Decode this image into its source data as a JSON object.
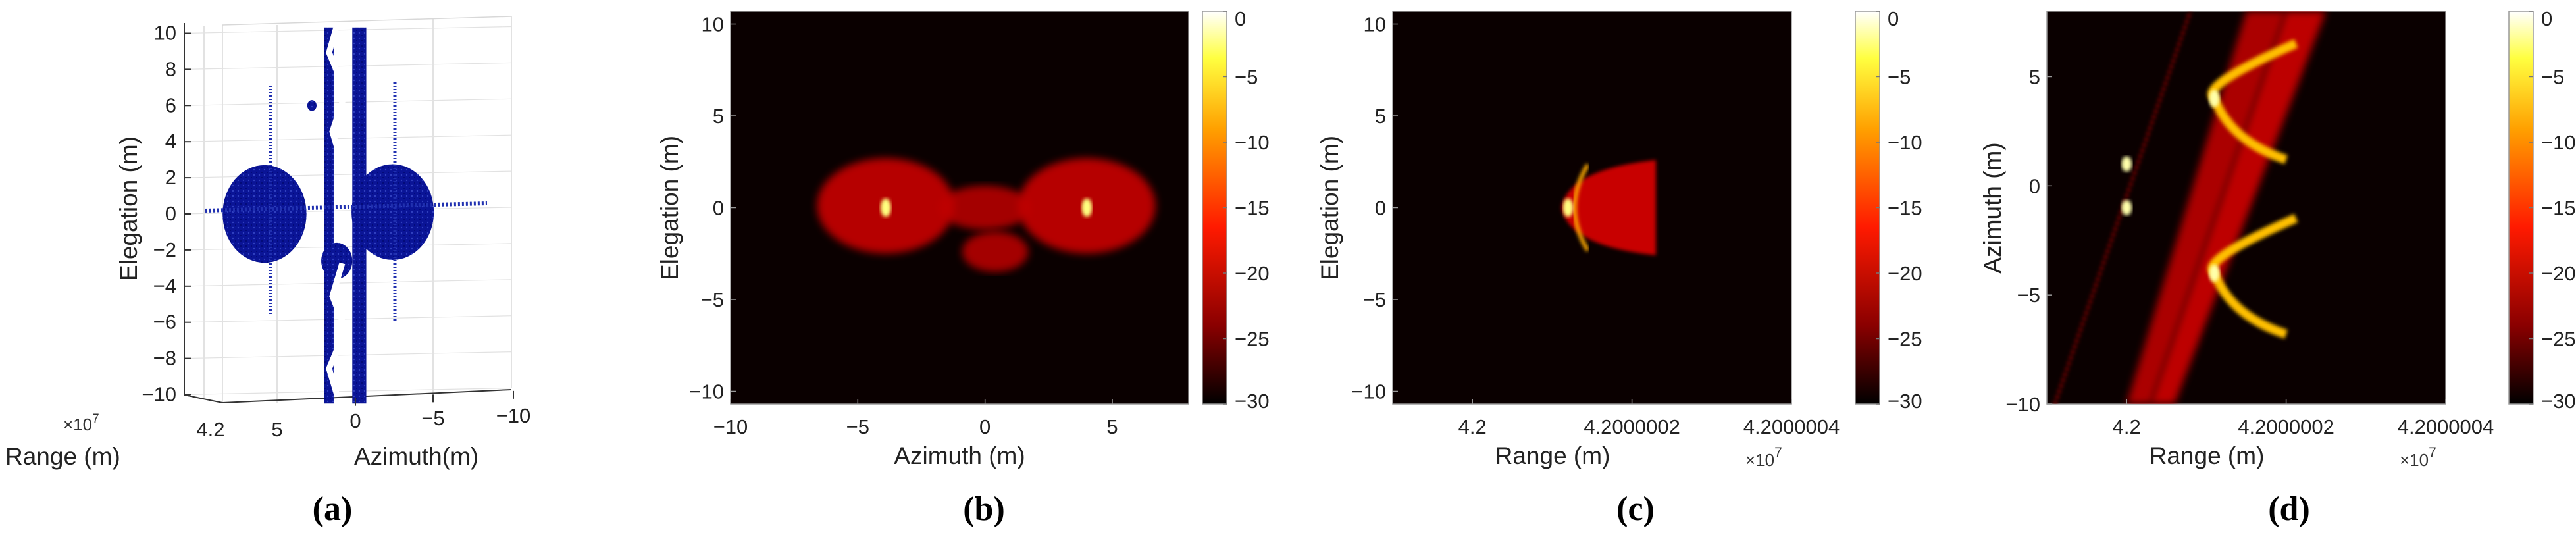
{
  "chart_data": [
    {
      "type": "scatter",
      "panel_label": "(a)",
      "xlabel": "Azimuth(m)",
      "zlabel": "Range (m)",
      "ylabel": "Elegation (m)",
      "range_multiplier": "×10",
      "range_multiplier_exp": "7",
      "yticks": [
        "10",
        "8",
        "6",
        "4",
        "2",
        "0",
        "−2",
        "−4",
        "−6",
        "−8",
        "−10"
      ],
      "ytick_values": [
        10,
        8,
        6,
        4,
        2,
        0,
        -2,
        -4,
        -6,
        -8,
        -10
      ],
      "xticks": [
        "0",
        "−5",
        "−10"
      ],
      "xtick_values": [
        0,
        -5,
        -10
      ],
      "ztick_labels": [
        "4.2",
        "5"
      ],
      "ylim": [
        -10.5,
        10.5
      ],
      "grid": true,
      "color": "#0a1496",
      "features": [
        {
          "kind": "sphere",
          "az": 5.85,
          "el": 0,
          "r": 2.7
        },
        {
          "kind": "sphere",
          "az": -2.4,
          "el": 0.1,
          "r": 2.65
        },
        {
          "kind": "bar",
          "az_from": 2.0,
          "az_to": 1.4,
          "el_from": -10.5,
          "el_to": 10.5
        },
        {
          "kind": "bar",
          "az_from": 0.2,
          "az_to": -0.7,
          "el_from": -10.5,
          "el_to": 10.5
        },
        {
          "kind": "blob",
          "az": 1.2,
          "el": -2.6,
          "r": 1.0
        },
        {
          "kind": "blob",
          "az": 2.8,
          "el": 6.0,
          "r": 0.3
        }
      ]
    },
    {
      "type": "heatmap",
      "panel_label": "(b)",
      "xlabel": "Azimuth (m)",
      "ylabel": "Elegation (m)",
      "xlim": [
        -10,
        8
      ],
      "ylim": [
        -10.7,
        10.7
      ],
      "xticks": [
        "−10",
        "−5",
        "0",
        "5"
      ],
      "xtick_values": [
        -10,
        -5,
        0,
        5
      ],
      "yticks": [
        "10",
        "5",
        "0",
        "−5",
        "−10"
      ],
      "ytick_values": [
        10,
        5,
        0,
        -5,
        -10
      ],
      "colorbar": {
        "ticks": [
          "0",
          "−5",
          "−10",
          "−15",
          "−20",
          "−25",
          "−30"
        ],
        "values": [
          0,
          -5,
          -10,
          -15,
          -20,
          -25,
          -30
        ],
        "range_db": [
          -30,
          0
        ],
        "colormap": "hot"
      },
      "features": [
        {
          "kind": "line",
          "x1": -1.1,
          "y1": -10.7,
          "x2": -1.1,
          "y2": 10.7,
          "db": -24
        },
        {
          "kind": "line",
          "x1": 1.1,
          "y1": -10.7,
          "x2": 1.1,
          "y2": 10.7,
          "db": -24
        },
        {
          "kind": "blob",
          "x": -3.9,
          "y": 0.1,
          "rx": 2.7,
          "ry": 2.6,
          "db": -20
        },
        {
          "kind": "blob",
          "x": 4.0,
          "y": 0.1,
          "rx": 2.7,
          "ry": 2.6,
          "db": -20
        },
        {
          "kind": "blob",
          "x": 0,
          "y": 0,
          "rx": 1.8,
          "ry": 1.2,
          "db": -21
        },
        {
          "kind": "blob",
          "x": 0.4,
          "y": -2.4,
          "rx": 1.3,
          "ry": 1.1,
          "db": -21
        },
        {
          "kind": "line",
          "x1": -8,
          "y1": 0,
          "x2": 7.7,
          "y2": 0,
          "db": -17
        },
        {
          "kind": "spot",
          "x": -3.9,
          "y": 0,
          "r": 0.5,
          "db": -3
        },
        {
          "kind": "spot",
          "x": 4.0,
          "y": 0,
          "r": 0.5,
          "db": -3
        }
      ]
    },
    {
      "type": "heatmap",
      "panel_label": "(c)",
      "xlabel": "Range (m)",
      "ylabel": "Elegation (m)",
      "x_multiplier": "×10",
      "x_multiplier_exp": "7",
      "xlim": [
        4.1999999,
        4.2000004
      ],
      "ylim": [
        -10.7,
        10.7
      ],
      "xticks": [
        "4.2",
        "4.2000002",
        "4.2000004"
      ],
      "xtick_values": [
        4.2,
        4.2000002,
        4.2000004
      ],
      "yticks": [
        "10",
        "5",
        "0",
        "−5",
        "−10"
      ],
      "ytick_values": [
        10,
        5,
        0,
        -5,
        -10
      ],
      "colorbar": {
        "ticks": [
          "0",
          "−5",
          "−10",
          "−15",
          "−20",
          "−25",
          "−30"
        ],
        "values": [
          0,
          -5,
          -10,
          -15,
          -20,
          -25,
          -30
        ],
        "range_db": [
          -30,
          0
        ],
        "colormap": "hot"
      },
      "features": [
        {
          "kind": "line",
          "x1": 4.2,
          "y1": -10,
          "x2": 4.2,
          "y2": 10,
          "db": -24
        },
        {
          "kind": "fan",
          "x": 4.20000012,
          "y": 0,
          "x_end": 4.20000023,
          "half_height": 2.6,
          "db": -19
        },
        {
          "kind": "line",
          "x1": 4.20000004,
          "y1": 0,
          "x2": 4.20000023,
          "y2": 0,
          "db": -17
        },
        {
          "kind": "spot",
          "x": 4.20000012,
          "y": 0,
          "r": 0.5,
          "db": -3
        }
      ]
    },
    {
      "type": "heatmap",
      "panel_label": "(d)",
      "xlabel": "Range (m)",
      "ylabel": "Azimuth (m)",
      "x_multiplier": "×10",
      "x_multiplier_exp": "7",
      "xlim": [
        4.1999999,
        4.2000004
      ],
      "ylim": [
        -10,
        8
      ],
      "xticks": [
        "4.2",
        "4.2000002",
        "4.2000004"
      ],
      "xtick_values": [
        4.2,
        4.2000002,
        4.2000004
      ],
      "yticks": [
        "5",
        "0",
        "−5",
        "−10"
      ],
      "ytick_values": [
        5,
        0,
        -5,
        -10
      ],
      "colorbar": {
        "ticks": [
          "0",
          "−5",
          "−10",
          "−15",
          "−20",
          "−25",
          "−30"
        ],
        "values": [
          0,
          -5,
          -10,
          -15,
          -20,
          -25,
          -30
        ],
        "range_db": [
          -30,
          0
        ],
        "colormap": "hot"
      },
      "features": [
        {
          "kind": "line",
          "x1": 4.19999991,
          "y1": -10,
          "x2": 4.20000008,
          "y2": 8,
          "db": -24
        },
        {
          "kind": "band",
          "bottom": [
            4.2,
            4.20000003
          ],
          "top": [
            4.20000015,
            4.2000002
          ],
          "db": -20
        },
        {
          "kind": "band",
          "bottom": [
            4.20000003,
            4.20000006
          ],
          "top": [
            4.2000002,
            4.20000025
          ],
          "db": -19
        },
        {
          "kind": "line",
          "x1": 4.2,
          "y1": -1.3,
          "x2": 4.2,
          "y2": 1.3,
          "db": -5
        },
        {
          "kind": "arc",
          "x": 4.20000011,
          "y": 4,
          "x_end": 4.2000002,
          "half_height": 2.8,
          "db": -9
        },
        {
          "kind": "arc",
          "x": 4.20000011,
          "y": -4,
          "x_end": 4.2000002,
          "half_height": 2.8,
          "db": -9
        },
        {
          "kind": "spot",
          "x": 4.20000011,
          "y": 4,
          "r": 0.4,
          "db": -2
        },
        {
          "kind": "spot",
          "x": 4.20000011,
          "y": -4,
          "r": 0.4,
          "db": -2
        },
        {
          "kind": "spot",
          "x": 4.2,
          "y": 1.0,
          "r": 0.35,
          "db": -2
        },
        {
          "kind": "spot",
          "x": 4.2,
          "y": -1.0,
          "r": 0.35,
          "db": -2
        }
      ]
    }
  ]
}
